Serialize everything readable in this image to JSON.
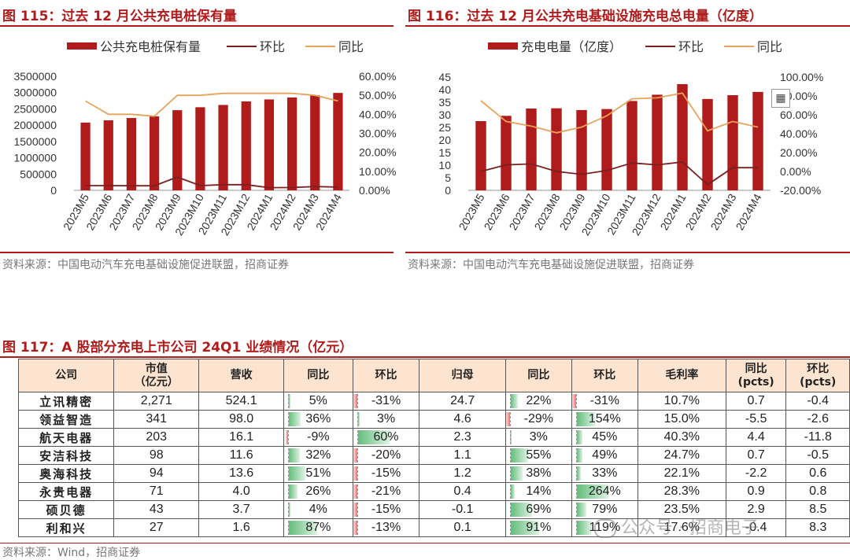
{
  "fig115": {
    "title": "图 115：过去 12 月公共充电桩保有量",
    "source": "资料来源：中国电动汽车充电基础设施促进联盟，招商证券",
    "chart_data": {
      "type": "bar",
      "categories": [
        "2023M5",
        "2023M6",
        "2023M7",
        "2023M8",
        "2023M9",
        "2023M10",
        "2023M11",
        "2023M12",
        "2024M1",
        "2024M2",
        "2024M3",
        "2024M4"
      ],
      "series": [
        {
          "name": "公共充电桩保有量",
          "type": "bar",
          "axis": "left",
          "color": "#b01c1c",
          "values": [
            2080000,
            2150000,
            2220000,
            2270000,
            2460000,
            2550000,
            2620000,
            2730000,
            2790000,
            2850000,
            2920000,
            2990000
          ]
        },
        {
          "name": "环比",
          "type": "line",
          "axis": "right",
          "color": "#7b1f1f",
          "values": [
            0.025,
            0.025,
            0.024,
            0.024,
            0.07,
            0.025,
            0.03,
            0.03,
            0.014,
            0.015,
            0.02,
            0.017
          ]
        },
        {
          "name": "同比",
          "type": "line",
          "axis": "right",
          "color": "#e8a35a",
          "values": [
            0.47,
            0.4,
            0.4,
            0.39,
            0.5,
            0.5,
            0.51,
            0.51,
            0.51,
            0.51,
            0.5,
            0.47
          ]
        }
      ],
      "yleft": {
        "ticks": [
          "3500000",
          "3000000",
          "2500000",
          "2000000",
          "1500000",
          "1000000",
          "500000",
          "0"
        ],
        "range": [
          0,
          3500000
        ]
      },
      "yright": {
        "ticks": [
          "60.00%",
          "50.00%",
          "40.00%",
          "30.00%",
          "20.00%",
          "10.00%",
          "0.00%"
        ],
        "range": [
          0,
          0.6
        ]
      },
      "legend_placement": "top"
    }
  },
  "fig116": {
    "title": "图 116：过去 12 月公共充电基础设施充电总电量（亿度）",
    "source": "资料来源：中国电动汽车充电基础设施促进联盟，招商证券",
    "chart_data": {
      "type": "bar",
      "categories": [
        "2023M5",
        "2023M6",
        "2023M7",
        "2023M8",
        "2023M9",
        "2023M10",
        "2023M11",
        "2023M12",
        "2024M1",
        "2024M2",
        "2024M3",
        "2024M4"
      ],
      "series": [
        {
          "name": "充电电量（亿度）",
          "type": "bar",
          "axis": "left",
          "color": "#b01c1c",
          "values": [
            27.5,
            29.6,
            32.5,
            32.6,
            31.9,
            32.3,
            35.5,
            38.0,
            42.2,
            36.3,
            37.8,
            39.1
          ]
        },
        {
          "name": "环比",
          "type": "line",
          "axis": "right",
          "color": "#7b1f1f",
          "values": [
            0.0,
            0.07,
            0.08,
            0.0,
            -0.03,
            0.01,
            0.09,
            0.07,
            0.1,
            -0.14,
            0.04,
            0.04
          ]
        },
        {
          "name": "同比",
          "type": "line",
          "axis": "right",
          "color": "#e8a35a",
          "values": [
            0.75,
            0.53,
            0.48,
            0.41,
            0.47,
            0.59,
            0.77,
            0.78,
            0.83,
            0.43,
            0.53,
            0.47
          ]
        }
      ],
      "yleft": {
        "ticks": [
          "45",
          "40",
          "35",
          "30",
          "25",
          "20",
          "15",
          "10",
          "5",
          "0"
        ],
        "range": [
          0,
          45
        ]
      },
      "yright": {
        "ticks": [
          "100.00%",
          "80.00%",
          "60.00%",
          "40.00%",
          "20.00%",
          "0.00%",
          "-20.00%"
        ],
        "range": [
          -0.2,
          1.0
        ]
      },
      "legend_placement": "top"
    }
  },
  "fig117": {
    "title": "图 117：A 股部分充电上市公司 24Q1 业绩情况（亿元）",
    "source": "资料来源：Wind，招商证券",
    "headers": [
      "公司",
      "市值\n（亿元）",
      "营收",
      "同比",
      "环比",
      "归母",
      "同比",
      "环比",
      "毛利率",
      "同比\n(pcts)",
      "环比\n(pcts)"
    ],
    "rows": [
      {
        "name": "立讯精密",
        "mcap": "2,271",
        "rev": "524.1",
        "rev_yoy": "5%",
        "rev_qoq": "-31%",
        "np": "24.7",
        "np_yoy": "22%",
        "np_qoq": "-31%",
        "gm": "10.7%",
        "gm_yoy": "0.7",
        "gm_qoq": "-0.4"
      },
      {
        "name": "领益智造",
        "mcap": "341",
        "rev": "98.0",
        "rev_yoy": "36%",
        "rev_qoq": "3%",
        "np": "4.6",
        "np_yoy": "-29%",
        "np_qoq": "154%",
        "gm": "15.0%",
        "gm_yoy": "-5.5",
        "gm_qoq": "-2.6"
      },
      {
        "name": "航天电器",
        "mcap": "203",
        "rev": "16.1",
        "rev_yoy": "-9%",
        "rev_qoq": "60%",
        "np": "2.3",
        "np_yoy": "3%",
        "np_qoq": "45%",
        "gm": "40.3%",
        "gm_yoy": "4.4",
        "gm_qoq": "-11.8"
      },
      {
        "name": "安洁科技",
        "mcap": "98",
        "rev": "11.6",
        "rev_yoy": "32%",
        "rev_qoq": "-20%",
        "np": "1.1",
        "np_yoy": "55%",
        "np_qoq": "49%",
        "gm": "24.7%",
        "gm_yoy": "0.7",
        "gm_qoq": "-0.5"
      },
      {
        "name": "奥海科技",
        "mcap": "94",
        "rev": "13.6",
        "rev_yoy": "51%",
        "rev_qoq": "-15%",
        "np": "1.2",
        "np_yoy": "38%",
        "np_qoq": "33%",
        "gm": "22.1%",
        "gm_yoy": "-2.2",
        "gm_qoq": "0.6"
      },
      {
        "name": "永贵电器",
        "mcap": "71",
        "rev": "4.0",
        "rev_yoy": "26%",
        "rev_qoq": "-21%",
        "np": "0.4",
        "np_yoy": "14%",
        "np_qoq": "264%",
        "gm": "28.3%",
        "gm_yoy": "0.9",
        "gm_qoq": "0.8"
      },
      {
        "name": "硕贝德",
        "mcap": "43",
        "rev": "3.7",
        "rev_yoy": "4%",
        "rev_qoq": "-15%",
        "np": "-0.1",
        "np_yoy": "69%",
        "np_qoq": "79%",
        "gm": "23.5%",
        "gm_yoy": "2.9",
        "gm_qoq": "8.5"
      },
      {
        "name": "利和兴",
        "mcap": "27",
        "rev": "1.6",
        "rev_yoy": "87%",
        "rev_qoq": "-13%",
        "np": "0.1",
        "np_yoy": "91%",
        "np_qoq": "119%",
        "gm": "17.6%",
        "gm_yoy": "-0.4",
        "gm_qoq": "8.3"
      }
    ],
    "bar_scales": {
      "rev_yoy": 1.0,
      "rev_qoq": 0.6,
      "np_yoy": 1.0,
      "np_qoq": 2.64
    }
  },
  "watermark": "公众号 · 招商电子",
  "icon": "image-viewer-icon"
}
